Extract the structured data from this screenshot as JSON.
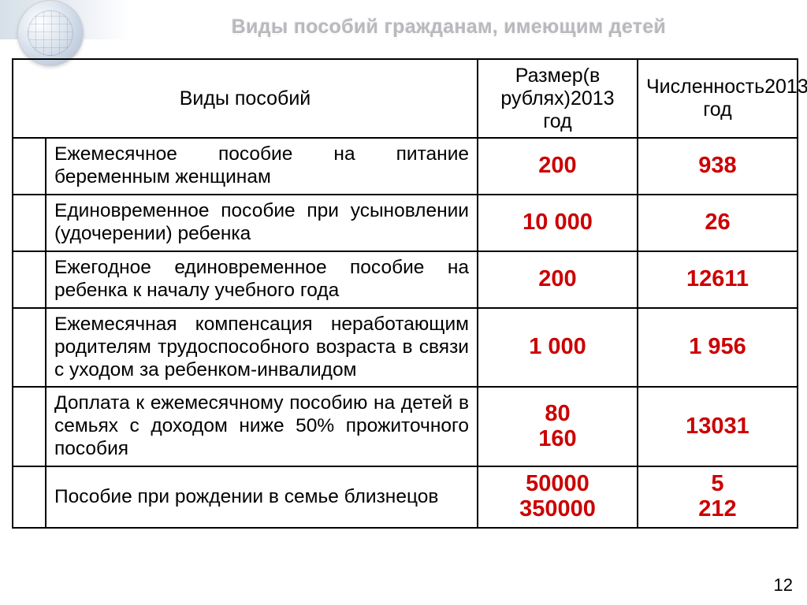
{
  "title": "Виды пособий гражданам, имеющим детей",
  "headers": {
    "col_types": "Виды пособий",
    "col_size": "Размер\n(в рублях)\n2013 год",
    "col_count": "Численность\n2013 год"
  },
  "rows": [
    {
      "label": "Ежемесячное пособие на питание беременным женщинам",
      "size": "200",
      "count": "938"
    },
    {
      "label": "Единовременное пособие при усыновлении (удочерении) ребенка",
      "size": "10 000",
      "count": "26"
    },
    {
      "label": "Ежегодное единовременное пособие на ребенка к началу учебного года",
      "size": "200",
      "count": "12611"
    },
    {
      "label": "Ежемесячная компенсация неработающим родителям трудоспособного возраста в связи с уходом за ребенком-инвалидом",
      "size": "1 000",
      "count": "1 956"
    },
    {
      "label": "Доплата к ежемесячному пособию на детей в семьях с доходом ниже 50% прожиточного пособия",
      "size": "80\n160",
      "count": "13031"
    },
    {
      "label": "Пособие при рождении в семье близнецов",
      "size": "50000\n350000",
      "count": "5\n212"
    }
  ],
  "colors": {
    "accent": "#cc0000"
  },
  "pageNumber": "12"
}
